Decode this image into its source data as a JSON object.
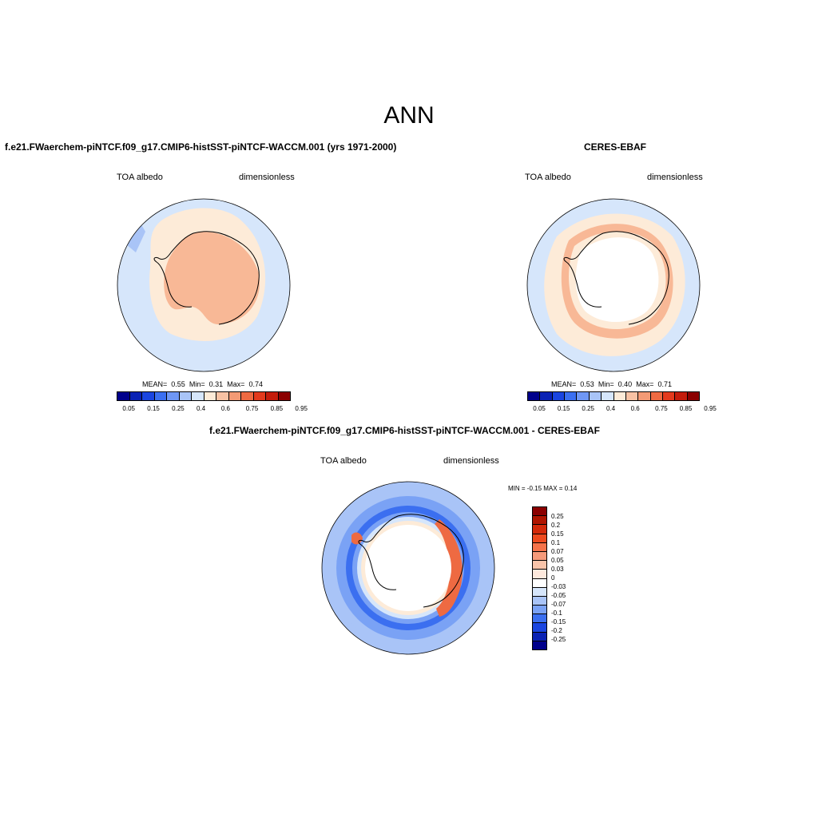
{
  "title": "ANN",
  "panels": {
    "model": {
      "title": "f.e21.FWaerchem-piNTCF.f09_g17.CMIP6-histSST-piNTCF-WACCM.001 (yrs 1971-2000)",
      "left_label": "TOA albedo",
      "right_label": "dimensionless",
      "stats": {
        "mean_label": "MEAN=",
        "mean": "0.55",
        "min_label": "Min=",
        "min": "0.31",
        "max_label": "Max=",
        "max": "0.74"
      }
    },
    "obs": {
      "title": "CERES-EBAF",
      "left_label": "TOA albedo",
      "right_label": "dimensionless",
      "stats": {
        "mean_label": "MEAN=",
        "mean": "0.53",
        "min_label": "Min=",
        "min": "0.40",
        "max_label": "Max=",
        "max": "0.71"
      }
    },
    "diff": {
      "title": "f.e21.FWaerchem-piNTCF.f09_g17.CMIP6-histSST-piNTCF-WACCM.001 - CERES-EBAF",
      "left_label": "TOA albedo",
      "right_label": "dimensionless",
      "minmax": "MIN =  -0.15 MAX =   0.14"
    }
  },
  "colorbar_abs": {
    "ticks": [
      "0.05",
      "0.15",
      "0.25",
      "0.4",
      "0.6",
      "0.75",
      "0.85",
      "0.95"
    ],
    "colors": [
      "#00008b",
      "#0a22b4",
      "#1a45e0",
      "#3b6ff0",
      "#6f97f5",
      "#a9c4f7",
      "#d6e6fb",
      "#fdebd8",
      "#f8c2a4",
      "#f39a75",
      "#ee6a42",
      "#e33a1d",
      "#c41c0b",
      "#8b0000"
    ]
  },
  "colorbar_diff": {
    "labels": [
      "0.25",
      "0.2",
      "0.15",
      "0.1",
      "0.07",
      "0.05",
      "0.03",
      "0",
      "-0.03",
      "-0.05",
      "-0.07",
      "-0.1",
      "-0.15",
      "-0.2",
      "-0.25"
    ],
    "colors": [
      "#8b0000",
      "#b01500",
      "#d42a0a",
      "#ee4a1e",
      "#f6734a",
      "#f69a7a",
      "#f9c4aa",
      "#fde8dc",
      "#ffffff",
      "#d6e6fb",
      "#a9c4f7",
      "#7aa2f5",
      "#3b6ff0",
      "#1a45e0",
      "#0a22b4",
      "#00008b"
    ]
  },
  "map_colors": {
    "ocean_light": "#d6e6fb",
    "peach": "#fdebd8",
    "salmon": "#f8b896",
    "land_white": "#ffffff",
    "blue_mid": "#7aa2f5",
    "blue_strong": "#3b6ff0",
    "red_band": "#ee6a42"
  }
}
